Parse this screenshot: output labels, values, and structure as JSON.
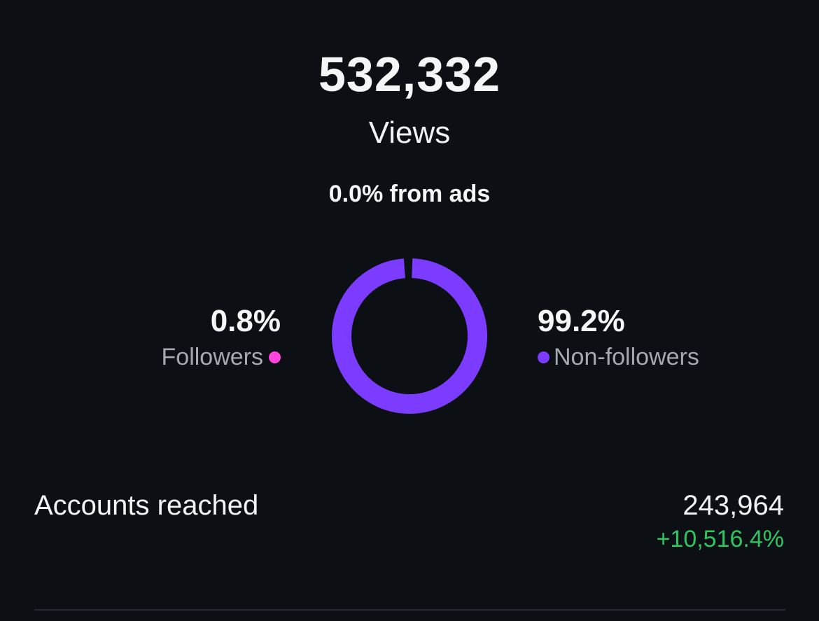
{
  "summary": {
    "views_value": "532,332",
    "views_label": "Views",
    "ads_text": "0.0% from ads"
  },
  "breakdown": {
    "followers": {
      "percent_text": "0.8%",
      "label": "Followers",
      "value": 0.8,
      "color": "#ff44e0"
    },
    "non_followers": {
      "percent_text": "99.2%",
      "label": "Non-followers",
      "value": 99.2,
      "color": "#7c3cff"
    }
  },
  "accounts_reached": {
    "label": "Accounts reached",
    "value": "243,964",
    "change": "+10,516.4%",
    "change_color": "#2fc45f"
  }
}
